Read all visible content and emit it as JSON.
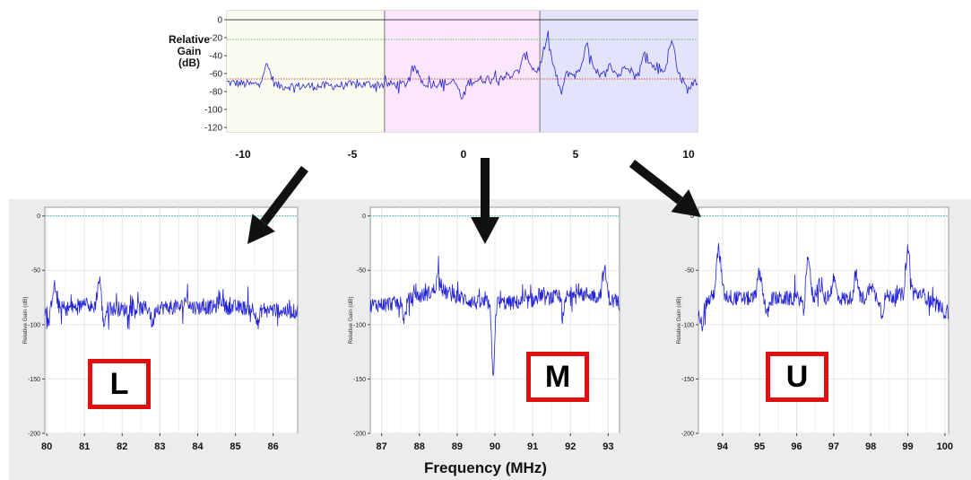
{
  "colors": {
    "trace": "#2323d6",
    "band_L": "#fbfbf0",
    "band_M": "#fce6fb",
    "band_U": "#e3e3fb",
    "label_box": "#e01010",
    "ref_line": "#66bbbb",
    "arrow": "#111111"
  },
  "chart_data": [
    {
      "id": "overview",
      "type": "line",
      "ylabel": "Relative Gain (dB)",
      "ylabel_lines": [
        "Relative Gain",
        "(dB)"
      ],
      "x_tick_labels": [
        "-10",
        "-5",
        "0",
        "5",
        "10"
      ],
      "x_ticks": [
        -10,
        -5,
        0,
        5,
        10
      ],
      "y_tick_labels": [
        "0",
        "-20",
        "-40",
        "-60",
        "-80",
        "-100",
        "-120"
      ],
      "y_ticks": [
        0,
        -20,
        -40,
        -60,
        -80,
        -100,
        -120
      ],
      "xlim": [
        -10,
        10
      ],
      "ylim": [
        -125,
        10
      ],
      "bands": [
        {
          "name": "L",
          "from": -10,
          "to": -3.3
        },
        {
          "name": "M",
          "from": -3.3,
          "to": 3.3
        },
        {
          "name": "U",
          "from": 3.3,
          "to": 10
        }
      ],
      "reference_lines": [
        -22,
        -66
      ],
      "noise_floor": [
        [
          -10,
          -70
        ],
        [
          -8,
          -74
        ],
        [
          -6,
          -74
        ],
        [
          -4,
          -72
        ],
        [
          -2,
          -72
        ],
        [
          0,
          -70
        ],
        [
          1,
          -66
        ],
        [
          2,
          -62
        ],
        [
          3,
          -58
        ],
        [
          4,
          -60
        ],
        [
          6,
          -64
        ],
        [
          8,
          -67
        ],
        [
          10,
          -68
        ]
      ],
      "peaks": [
        [
          -8.3,
          -52
        ],
        [
          -2.0,
          -56
        ],
        [
          2.7,
          -40
        ],
        [
          3.6,
          -25
        ],
        [
          4.4,
          -58
        ],
        [
          5.3,
          -30
        ],
        [
          6.3,
          -52
        ],
        [
          7.0,
          -50
        ],
        [
          7.8,
          -36
        ],
        [
          8.3,
          -52
        ],
        [
          8.9,
          -26
        ]
      ],
      "dips": [
        [
          0.0,
          -88
        ],
        [
          4.2,
          -82
        ],
        [
          9.6,
          -78
        ]
      ],
      "grid": false
    },
    {
      "id": "L",
      "type": "line",
      "label": "L",
      "ylabel": "Relative Gain (dB)",
      "x_tick_labels": [
        "80",
        "81",
        "82",
        "83",
        "84",
        "85",
        "86"
      ],
      "x_ticks": [
        80,
        81,
        82,
        83,
        84,
        85,
        86
      ],
      "y_tick_labels": [
        "0",
        "-50",
        "-100",
        "-150",
        "-200"
      ],
      "y_ticks": [
        0,
        -50,
        -100,
        -150,
        -200
      ],
      "xlim": [
        79.95,
        86.65
      ],
      "ylim": [
        -200,
        8
      ],
      "reference_lines": [
        0
      ],
      "noise_floor": [
        [
          80,
          -86
        ],
        [
          81,
          -84
        ],
        [
          82,
          -86
        ],
        [
          83,
          -84
        ],
        [
          84,
          -84
        ],
        [
          85,
          -84
        ],
        [
          86.6,
          -88
        ]
      ],
      "peaks": [
        [
          80.2,
          -65
        ],
        [
          81.4,
          -58
        ],
        [
          81.0,
          -75
        ],
        [
          83.7,
          -76
        ],
        [
          84.6,
          -76
        ]
      ],
      "dips": [
        [
          80.05,
          -100
        ],
        [
          81.5,
          -104
        ],
        [
          82.8,
          -100
        ],
        [
          85.6,
          -100
        ]
      ],
      "grid": true
    },
    {
      "id": "M",
      "type": "line",
      "label": "M",
      "ylabel": "Relative Gain (dB)",
      "x_tick_labels": [
        "87",
        "88",
        "89",
        "90",
        "91",
        "92",
        "93"
      ],
      "x_ticks": [
        87,
        88,
        89,
        90,
        91,
        92,
        93
      ],
      "y_tick_labels": [
        "0",
        "-50",
        "-100",
        "-150",
        "-200"
      ],
      "y_ticks": [
        0,
        -50,
        -100,
        -150,
        -200
      ],
      "xlim": [
        86.7,
        93.3
      ],
      "ylim": [
        -200,
        8
      ],
      "reference_lines": [
        0
      ],
      "noise_floor": [
        [
          86.7,
          -82
        ],
        [
          87.5,
          -80
        ],
        [
          88.5,
          -68
        ],
        [
          89.5,
          -80
        ],
        [
          90.5,
          -80
        ],
        [
          91.5,
          -75
        ],
        [
          92.5,
          -72
        ],
        [
          93.3,
          -80
        ]
      ],
      "peaks": [
        [
          88.5,
          -56
        ],
        [
          92.9,
          -50
        ],
        [
          91.2,
          -72
        ],
        [
          92.1,
          -68
        ]
      ],
      "dips": [
        [
          89.95,
          -145
        ],
        [
          87.6,
          -95
        ],
        [
          91.8,
          -95
        ]
      ],
      "grid": true
    },
    {
      "id": "U",
      "type": "line",
      "label": "U",
      "ylabel": "Relative Gain (dB)",
      "x_tick_labels": [
        "94",
        "95",
        "96",
        "97",
        "98",
        "99",
        "100"
      ],
      "x_ticks": [
        94,
        95,
        96,
        97,
        98,
        99,
        100
      ],
      "y_tick_labels": [
        "0",
        "-50",
        "-100",
        "-150",
        "-200"
      ],
      "y_ticks": [
        0,
        -50,
        -100,
        -150,
        -200
      ],
      "xlim": [
        93.35,
        100.1
      ],
      "ylim": [
        -200,
        8
      ],
      "reference_lines": [
        0
      ],
      "noise_floor": [
        [
          93.4,
          -85
        ],
        [
          93.8,
          -72
        ],
        [
          94.5,
          -76
        ],
        [
          95.5,
          -76
        ],
        [
          96.5,
          -76
        ],
        [
          97.5,
          -76
        ],
        [
          98.5,
          -74
        ],
        [
          99.4,
          -72
        ],
        [
          100.0,
          -88
        ]
      ],
      "peaks": [
        [
          93.9,
          -30
        ],
        [
          95.0,
          -52
        ],
        [
          96.3,
          -35
        ],
        [
          97.0,
          -58
        ],
        [
          97.6,
          -55
        ],
        [
          98.0,
          -62
        ],
        [
          99.0,
          -30
        ],
        [
          96.6,
          -62
        ]
      ],
      "dips": [
        [
          93.45,
          -100
        ],
        [
          95.2,
          -92
        ],
        [
          96.2,
          -94
        ],
        [
          98.3,
          -90
        ]
      ],
      "grid": true
    }
  ],
  "xlabel": "Frequency (MHz)"
}
